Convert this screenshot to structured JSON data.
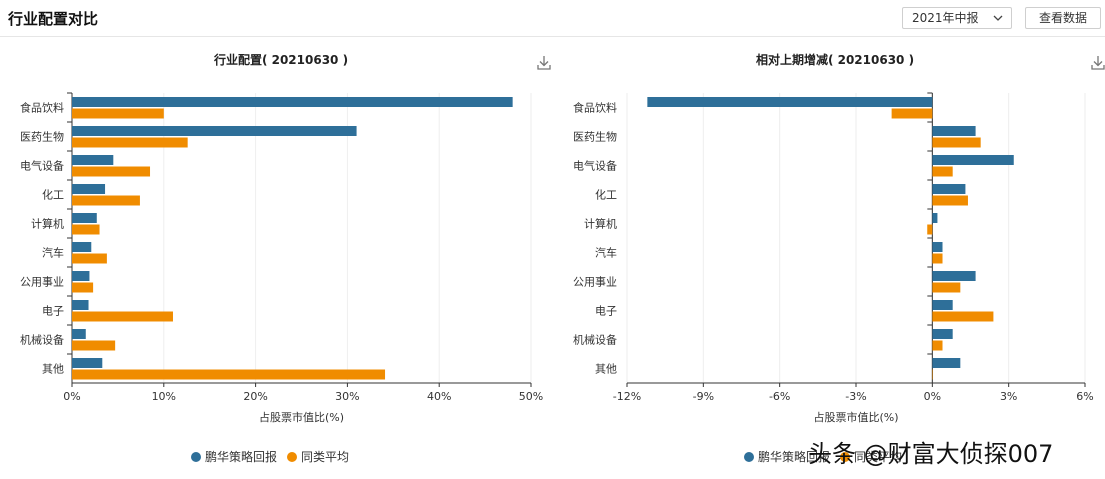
{
  "header": {
    "title": "行业配置对比",
    "period_select": "2021年中报",
    "view_data_button": "查看数据"
  },
  "colors": {
    "fund": "#2e6f99",
    "peer": "#f08c00"
  },
  "icons": [
    "download-icon",
    "chevron-down-icon"
  ],
  "watermark": "头条 @财富大侦探007",
  "chart_data": [
    {
      "type": "bar",
      "orientation": "horizontal",
      "title": "行业配置( 20210630 )",
      "xlabel": "占股票市值比(%)",
      "ylabel": "",
      "xlim": [
        0,
        50
      ],
      "xticks": [
        "0%",
        "10%",
        "20%",
        "30%",
        "40%",
        "50%"
      ],
      "xtick_values": [
        0,
        10,
        20,
        30,
        40,
        50
      ],
      "grid": true,
      "legend_position": "bottom",
      "categories": [
        "食品饮料",
        "医药生物",
        "电气设备",
        "化工",
        "计算机",
        "汽车",
        "公用事业",
        "电子",
        "机械设备",
        "其他"
      ],
      "series": [
        {
          "name": "鹏华策略回报",
          "values": [
            48.0,
            31.0,
            4.5,
            3.6,
            2.7,
            2.1,
            1.9,
            1.8,
            1.5,
            3.3
          ]
        },
        {
          "name": "同类平均",
          "values": [
            10.0,
            12.6,
            8.5,
            7.4,
            3.0,
            3.8,
            2.3,
            11.0,
            4.7,
            34.1
          ]
        }
      ]
    },
    {
      "type": "bar",
      "orientation": "horizontal",
      "title": "相对上期增减( 20210630 )",
      "xlabel": "占股票市值比(%)",
      "ylabel": "",
      "xlim": [
        -12,
        6
      ],
      "xticks": [
        "-12%",
        "-9%",
        "-6%",
        "-3%",
        "0%",
        "3%",
        "6%"
      ],
      "xtick_values": [
        -12,
        -9,
        -6,
        -3,
        0,
        3,
        6
      ],
      "grid": true,
      "legend_position": "bottom",
      "categories": [
        "食品饮料",
        "医药生物",
        "电气设备",
        "化工",
        "计算机",
        "汽车",
        "公用事业",
        "电子",
        "机械设备",
        "其他"
      ],
      "series": [
        {
          "name": "鹏华策略回报",
          "values": [
            -11.2,
            1.7,
            3.2,
            1.3,
            0.2,
            0.4,
            1.7,
            0.8,
            0.8,
            1.1
          ]
        },
        {
          "name": "同类平均",
          "values": [
            -1.6,
            1.9,
            0.8,
            1.4,
            -0.2,
            0.4,
            1.1,
            2.4,
            0.4,
            0.0
          ]
        }
      ]
    }
  ]
}
